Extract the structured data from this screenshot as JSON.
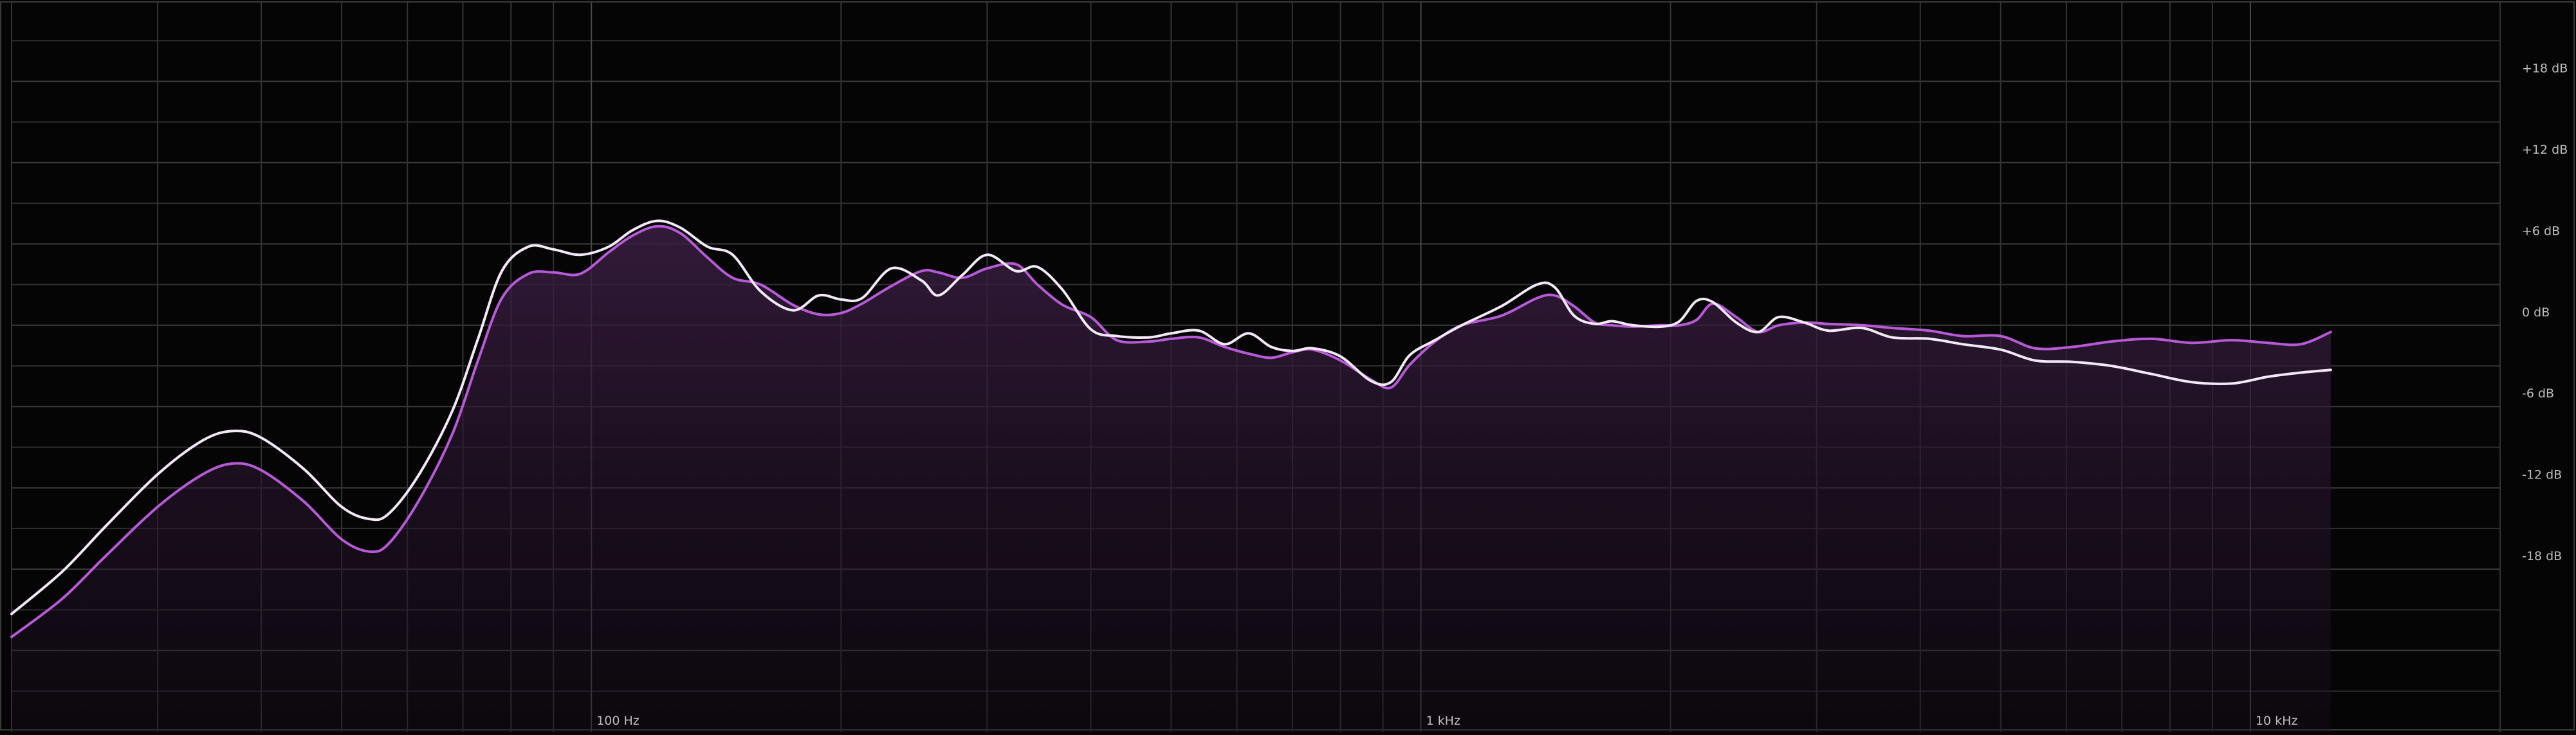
{
  "chart_data": {
    "type": "line",
    "title": "",
    "xlabel": "",
    "ylabel": "",
    "x_scale": "log",
    "xlim": [
      20,
      20000
    ],
    "ylim": [
      -30,
      24
    ],
    "grid": true,
    "x_tick_labels": [
      {
        "value": 100,
        "label": "100 Hz"
      },
      {
        "value": 1000,
        "label": "1 kHz"
      },
      {
        "value": 10000,
        "label": "10 kHz"
      }
    ],
    "y_tick_labels": [
      {
        "value": 18,
        "label": "+18 dB"
      },
      {
        "value": 12,
        "label": "+12 dB"
      },
      {
        "value": 6,
        "label": "+6 dB"
      },
      {
        "value": 0,
        "label": "0 dB"
      },
      {
        "value": -6,
        "label": "-6 dB"
      },
      {
        "value": -12,
        "label": "-12 dB"
      },
      {
        "value": -18,
        "label": "-18 dB"
      }
    ],
    "series": [
      {
        "color": "#f2e8f6",
        "filled": false,
        "points": [
          [
            20,
            -21.3
          ],
          [
            23,
            -18.2
          ],
          [
            26,
            -14.8
          ],
          [
            30,
            -11.0
          ],
          [
            34,
            -8.5
          ],
          [
            37,
            -7.8
          ],
          [
            40,
            -8.3
          ],
          [
            45,
            -10.6
          ],
          [
            50,
            -13.4
          ],
          [
            54,
            -14.3
          ],
          [
            57,
            -13.9
          ],
          [
            62,
            -11.0
          ],
          [
            68,
            -6.3
          ],
          [
            73,
            -1.0
          ],
          [
            78,
            4.0
          ],
          [
            84,
            5.8
          ],
          [
            90,
            5.6
          ],
          [
            97,
            5.2
          ],
          [
            105,
            5.8
          ],
          [
            112,
            7.0
          ],
          [
            120,
            7.7
          ],
          [
            128,
            7.2
          ],
          [
            138,
            5.8
          ],
          [
            148,
            5.2
          ],
          [
            160,
            2.5
          ],
          [
            175,
            1.1
          ],
          [
            188,
            2.2
          ],
          [
            200,
            1.9
          ],
          [
            212,
            2.0
          ],
          [
            230,
            4.2
          ],
          [
            250,
            3.3
          ],
          [
            262,
            2.2
          ],
          [
            280,
            3.7
          ],
          [
            300,
            5.2
          ],
          [
            325,
            4.0
          ],
          [
            345,
            4.3
          ],
          [
            370,
            2.6
          ],
          [
            400,
            -0.3
          ],
          [
            430,
            -0.8
          ],
          [
            470,
            -0.9
          ],
          [
            500,
            -0.6
          ],
          [
            540,
            -0.4
          ],
          [
            580,
            -1.4
          ],
          [
            620,
            -0.6
          ],
          [
            660,
            -1.6
          ],
          [
            700,
            -1.9
          ],
          [
            740,
            -1.7
          ],
          [
            800,
            -2.3
          ],
          [
            870,
            -4.1
          ],
          [
            920,
            -4.2
          ],
          [
            970,
            -2.2
          ],
          [
            1040,
            -1.1
          ],
          [
            1120,
            0.0
          ],
          [
            1250,
            1.4
          ],
          [
            1380,
            3.0
          ],
          [
            1450,
            2.8
          ],
          [
            1530,
            0.7
          ],
          [
            1620,
            0.1
          ],
          [
            1700,
            0.3
          ],
          [
            1800,
            0.0
          ],
          [
            1950,
            -0.1
          ],
          [
            2050,
            0.3
          ],
          [
            2150,
            1.8
          ],
          [
            2250,
            1.7
          ],
          [
            2400,
            0.2
          ],
          [
            2550,
            -0.5
          ],
          [
            2700,
            0.6
          ],
          [
            2900,
            0.2
          ],
          [
            3100,
            -0.4
          ],
          [
            3400,
            -0.2
          ],
          [
            3700,
            -0.9
          ],
          [
            4100,
            -1.0
          ],
          [
            4500,
            -1.4
          ],
          [
            5000,
            -1.8
          ],
          [
            5500,
            -2.6
          ],
          [
            6100,
            -2.7
          ],
          [
            6800,
            -3.0
          ],
          [
            7600,
            -3.6
          ],
          [
            8500,
            -4.2
          ],
          [
            9500,
            -4.3
          ],
          [
            10500,
            -3.8
          ],
          [
            11500,
            -3.5
          ],
          [
            12500,
            -3.3
          ]
        ]
      },
      {
        "color": "#b85ad8",
        "filled": true,
        "fill_color": "#3a1e42",
        "points": [
          [
            20,
            -23.0
          ],
          [
            23,
            -20.2
          ],
          [
            26,
            -17.0
          ],
          [
            30,
            -13.4
          ],
          [
            34,
            -11.0
          ],
          [
            37,
            -10.2
          ],
          [
            40,
            -10.7
          ],
          [
            45,
            -13.0
          ],
          [
            50,
            -15.8
          ],
          [
            54,
            -16.7
          ],
          [
            57,
            -16.1
          ],
          [
            62,
            -12.9
          ],
          [
            68,
            -8.0
          ],
          [
            73,
            -2.6
          ],
          [
            78,
            2.0
          ],
          [
            84,
            3.8
          ],
          [
            90,
            3.9
          ],
          [
            97,
            3.8
          ],
          [
            105,
            5.4
          ],
          [
            112,
            6.6
          ],
          [
            120,
            7.3
          ],
          [
            128,
            6.8
          ],
          [
            138,
            5.0
          ],
          [
            148,
            3.5
          ],
          [
            160,
            3.0
          ],
          [
            175,
            1.5
          ],
          [
            188,
            0.8
          ],
          [
            200,
            0.9
          ],
          [
            212,
            1.6
          ],
          [
            230,
            2.9
          ],
          [
            250,
            4.0
          ],
          [
            262,
            3.9
          ],
          [
            280,
            3.5
          ],
          [
            300,
            4.2
          ],
          [
            325,
            4.5
          ],
          [
            345,
            3.0
          ],
          [
            370,
            1.5
          ],
          [
            400,
            0.6
          ],
          [
            430,
            -1.1
          ],
          [
            470,
            -1.2
          ],
          [
            500,
            -1.0
          ],
          [
            540,
            -0.9
          ],
          [
            580,
            -1.6
          ],
          [
            620,
            -2.1
          ],
          [
            660,
            -2.4
          ],
          [
            700,
            -2.0
          ],
          [
            740,
            -1.8
          ],
          [
            800,
            -2.6
          ],
          [
            870,
            -4.0
          ],
          [
            920,
            -4.6
          ],
          [
            970,
            -2.9
          ],
          [
            1040,
            -1.2
          ],
          [
            1120,
            0.0
          ],
          [
            1250,
            0.7
          ],
          [
            1380,
            2.0
          ],
          [
            1450,
            2.2
          ],
          [
            1530,
            1.4
          ],
          [
            1620,
            0.2
          ],
          [
            1700,
            0.0
          ],
          [
            1800,
            -0.1
          ],
          [
            1950,
            0.0
          ],
          [
            2050,
            0.0
          ],
          [
            2150,
            0.4
          ],
          [
            2250,
            1.6
          ],
          [
            2400,
            0.6
          ],
          [
            2550,
            -0.5
          ],
          [
            2700,
            0.0
          ],
          [
            2900,
            0.2
          ],
          [
            3100,
            0.1
          ],
          [
            3400,
            0.0
          ],
          [
            3700,
            -0.2
          ],
          [
            4100,
            -0.4
          ],
          [
            4500,
            -0.8
          ],
          [
            5000,
            -0.8
          ],
          [
            5500,
            -1.7
          ],
          [
            6100,
            -1.6
          ],
          [
            6800,
            -1.2
          ],
          [
            7600,
            -1.0
          ],
          [
            8500,
            -1.3
          ],
          [
            9500,
            -1.1
          ],
          [
            10500,
            -1.3
          ],
          [
            11500,
            -1.4
          ],
          [
            12500,
            -0.5
          ]
        ]
      }
    ]
  }
}
